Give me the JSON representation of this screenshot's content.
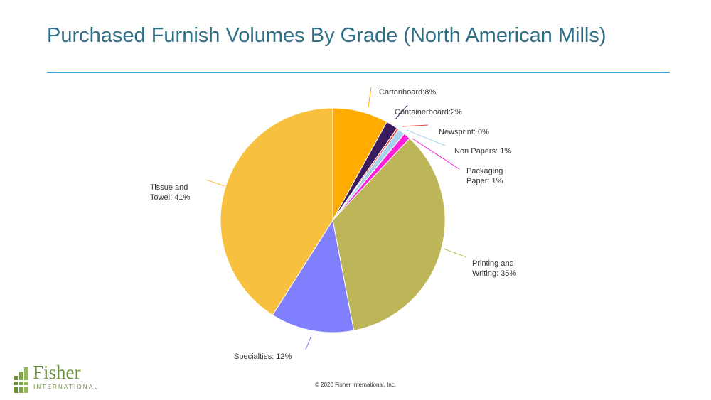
{
  "title": "Purchased Furnish Volumes By Grade (North American Mills)",
  "copyright": "© 2020 Fisher International, Inc.",
  "logo": {
    "name": "Fisher",
    "subtitle": "INTERNATIONAL",
    "color": "#6b8e3a"
  },
  "chart_data": {
    "type": "pie",
    "title": "",
    "start_angle_deg": 0,
    "direction": "clockwise",
    "slices": [
      {
        "label": [
          "Cartonboard:8%"
        ],
        "value": 8,
        "color": "#ffab00"
      },
      {
        "label": [
          "Containerboard:2%"
        ],
        "value": 1.7,
        "color": "#3b1a5e"
      },
      {
        "label": [
          "Newsprint: 0%"
        ],
        "value": 0.3,
        "color": "#e8423c"
      },
      {
        "label": [
          "Non Papers: 1%"
        ],
        "value": 1.0,
        "color": "#a9d2ec"
      },
      {
        "label": [
          "Packaging",
          "Paper: 1%"
        ],
        "value": 1.0,
        "color": "#ff1fd6"
      },
      {
        "label": [
          "Printing and",
          "Writing: 35%"
        ],
        "value": 35,
        "color": "#bdb658"
      },
      {
        "label": [
          "Specialties: 12%"
        ],
        "value": 12,
        "color": "#8080ff"
      },
      {
        "label": [
          "Tissue and",
          "Towel: 41%"
        ],
        "value": 41,
        "color": "#f7c03e"
      }
    ]
  }
}
